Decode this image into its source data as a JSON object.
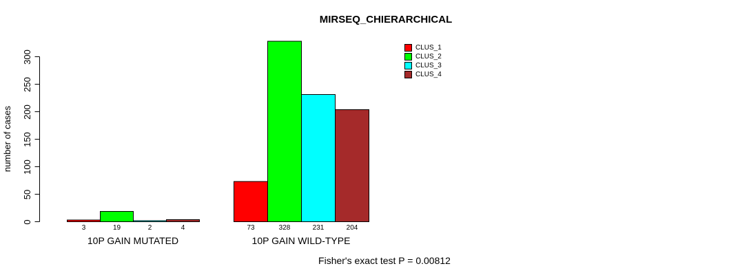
{
  "title": "MIRSEQ_CHIERARCHICAL",
  "chart_data": {
    "type": "bar",
    "title": "MIRSEQ_CHIERARCHICAL",
    "ylabel": "number of cases",
    "xlabel": "",
    "ylim": [
      0,
      330
    ],
    "yticks": [
      0,
      50,
      100,
      150,
      200,
      250,
      300
    ],
    "grid": false,
    "legend_position": "top-right",
    "bar_value_labels_shown": true,
    "categories": [
      "10P GAIN MUTATED",
      "10P GAIN WILD-TYPE"
    ],
    "series": [
      {
        "name": "CLUS_1",
        "color": "#ff0000",
        "values": [
          3,
          73
        ]
      },
      {
        "name": "CLUS_2",
        "color": "#00ff00",
        "values": [
          19,
          328
        ]
      },
      {
        "name": "CLUS_3",
        "color": "#00ffff",
        "values": [
          2,
          231
        ]
      },
      {
        "name": "CLUS_4",
        "color": "#a52a2a",
        "values": [
          4,
          204
        ]
      }
    ],
    "annotation": "Fisher's exact test P = 0.00812",
    "axis_color": "#000000",
    "bar_border_color": "#000000"
  }
}
